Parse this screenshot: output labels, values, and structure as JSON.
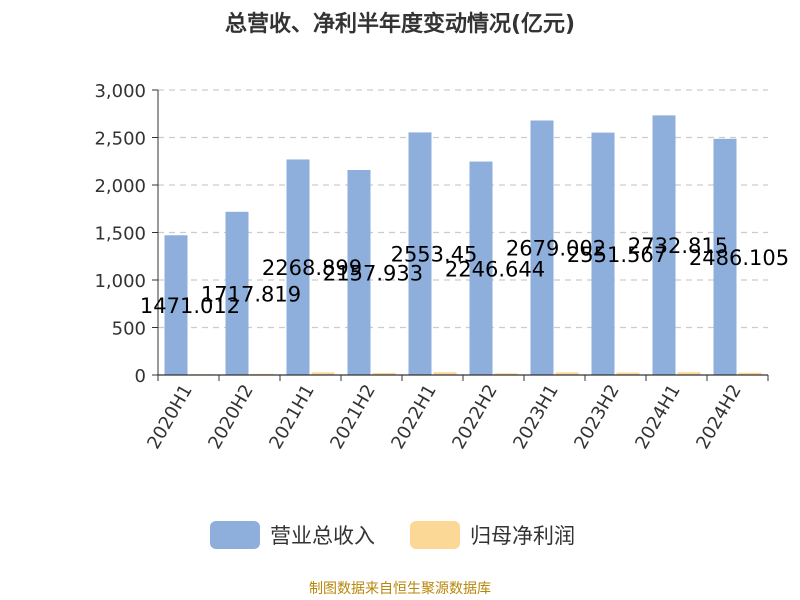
{
  "chart_data": {
    "type": "bar",
    "title": "总营收、净利半年度变动情况(亿元)",
    "categories": [
      "2020H1",
      "2020H2",
      "2021H1",
      "2021H2",
      "2022H1",
      "2022H2",
      "2023H1",
      "2023H2",
      "2024H1",
      "2024H2"
    ],
    "series": [
      {
        "name": "营业总收入",
        "color": "#8eaedc",
        "values": [
          1471.012,
          1717.819,
          2268.899,
          2157.933,
          2553.45,
          2246.644,
          2679.002,
          2551.567,
          2732.815,
          2486.105
        ],
        "labels": [
          "1471.012",
          "1717.819",
          "2268.899",
          "2157.933",
          "2553.45",
          "2246.644",
          "2679.002",
          "2551.567",
          "2732.815",
          "2486.105"
        ]
      },
      {
        "name": "归母净利润",
        "color": "#fbd895",
        "values": [
          8,
          12,
          28,
          22,
          30,
          18,
          28,
          26,
          30,
          24
        ]
      }
    ],
    "ylim": [
      0,
      3000
    ],
    "yticks": [
      0,
      500,
      1000,
      1500,
      2000,
      2500,
      3000
    ],
    "ytick_labels": [
      "0",
      "500",
      "1,000",
      "1,500",
      "2,000",
      "2,500",
      "3,000"
    ],
    "grid": true,
    "legend": "bottom"
  },
  "footer": {
    "source": "制图数据来自恒生聚源数据库"
  }
}
